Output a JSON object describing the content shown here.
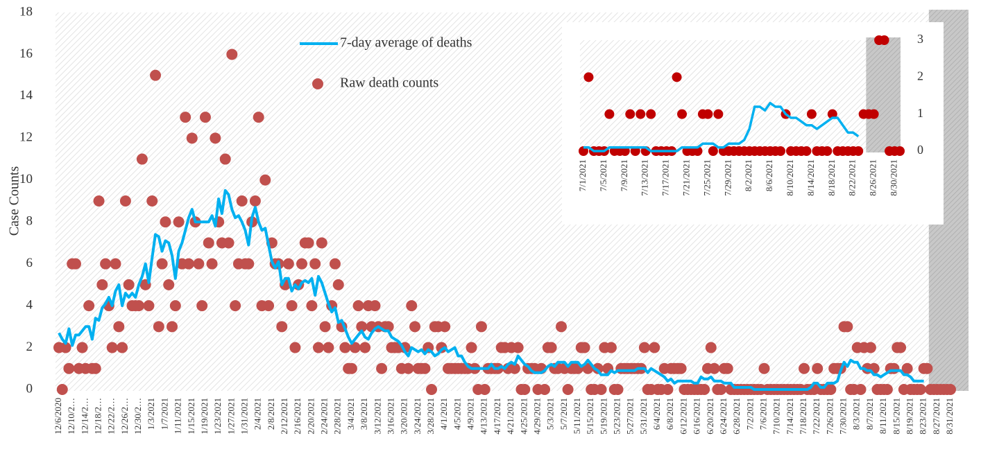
{
  "chart_data": [
    {
      "type": "line",
      "y_label": "Case Counts",
      "categories": [
        "12/6/2020",
        null,
        null,
        null,
        "12/10/2…",
        null,
        null,
        null,
        "12/14/2…",
        null,
        null,
        null,
        "12/18/2…",
        null,
        null,
        null,
        "12/22/2…",
        null,
        null,
        null,
        "12/26/2…",
        null,
        null,
        null,
        "12/30/2…",
        null,
        null,
        null,
        "1/3/2021",
        null,
        null,
        null,
        "1/7/2021",
        null,
        null,
        null,
        "1/11/2021",
        null,
        null,
        null,
        "1/15/2021",
        null,
        null,
        null,
        "1/19/2021",
        null,
        null,
        null,
        "1/23/2021",
        null,
        null,
        null,
        "1/27/2021",
        null,
        null,
        null,
        "1/31/2021",
        null,
        null,
        null,
        "2/4/2021",
        null,
        null,
        null,
        "2/8/2021",
        null,
        null,
        null,
        "2/12/2021",
        null,
        null,
        null,
        "2/16/2021",
        null,
        null,
        null,
        "2/20/2021",
        null,
        null,
        null,
        "2/24/2021",
        null,
        null,
        null,
        "2/28/2021",
        null,
        null,
        null,
        "3/4/2021",
        null,
        null,
        null,
        "3/8/2021",
        null,
        null,
        null,
        "3/12/2021",
        null,
        null,
        null,
        "3/16/2021",
        null,
        null,
        null,
        "3/20/2021",
        null,
        null,
        null,
        "3/24/2021",
        null,
        null,
        null,
        "3/28/2021",
        null,
        null,
        null,
        "4/1/2021",
        null,
        null,
        null,
        "4/5/2021",
        null,
        null,
        null,
        "4/9/2021",
        null,
        null,
        null,
        "4/13/2021",
        null,
        null,
        null,
        "4/17/2021",
        null,
        null,
        null,
        "4/21/2021",
        null,
        null,
        null,
        "4/25/2021",
        null,
        null,
        null,
        "4/29/2021",
        null,
        null,
        null,
        "5/3/2021",
        null,
        null,
        null,
        "5/7/2021",
        null,
        null,
        null,
        "5/11/2021",
        null,
        null,
        null,
        "5/15/2021",
        null,
        null,
        null,
        "5/19/2021",
        null,
        null,
        null,
        "5/23/2021",
        null,
        null,
        null,
        "5/27/2021",
        null,
        null,
        null,
        "5/31/2021",
        null,
        null,
        null,
        "6/4/2021",
        null,
        null,
        null,
        "6/8/2021",
        null,
        null,
        null,
        "6/12/2021",
        null,
        null,
        null,
        "6/16/2021",
        null,
        null,
        null,
        "6/20/2021",
        null,
        null,
        null,
        "6/24/2021",
        null,
        null,
        null,
        "6/28/2021",
        null,
        null,
        null,
        "7/2/2021",
        null,
        null,
        null,
        "7/6/2021",
        null,
        null,
        null,
        "7/10/2021",
        null,
        null,
        null,
        "7/14/2021",
        null,
        null,
        null,
        "7/18/2021",
        null,
        null,
        null,
        "7/22/2021",
        null,
        null,
        null,
        "7/26/2021",
        null,
        null,
        null,
        "7/30/2021",
        null,
        null,
        null,
        "8/3/2021",
        null,
        null,
        null,
        "8/7/2021",
        null,
        null,
        null,
        "8/11/2021",
        null,
        null,
        null,
        "8/15/2021",
        null,
        null,
        null,
        "8/19/2021",
        null,
        null,
        null,
        "8/23/2021",
        null,
        null,
        null,
        "8/27/2021",
        null,
        null,
        null,
        "8/31/2021"
      ],
      "series": [
        {
          "name": "7-day average of deaths",
          "color": "#00b0f0",
          "values": [
            2.7,
            2.4,
            2.2,
            2.9,
            2.1,
            2.6,
            2.6,
            2.8,
            3.0,
            3.0,
            2.4,
            3.4,
            3.3,
            3.9,
            4.1,
            4.4,
            4.0,
            4.7,
            5.0,
            4.0,
            4.6,
            4.4,
            4.6,
            4.4,
            5.0,
            5.4,
            6.0,
            5.1,
            6.3,
            7.4,
            7.3,
            6.6,
            7.1,
            7.0,
            6.4,
            5.3,
            6.6,
            7.0,
            7.6,
            8.2,
            8.6,
            8.0,
            8.0,
            8.0,
            8.0,
            8.0,
            8.3,
            7.8,
            9.1,
            8.4,
            9.5,
            9.3,
            8.6,
            8.2,
            8.3,
            8.0,
            7.6,
            6.9,
            8.2,
            8.7,
            8.0,
            7.6,
            7.7,
            6.9,
            6.1,
            5.8,
            6.1,
            5.0,
            5.3,
            5.3,
            4.7,
            5.0,
            4.8,
            5.1,
            5.2,
            5.1,
            5.3,
            4.5,
            5.4,
            5.1,
            4.6,
            4.1,
            3.7,
            3.9,
            3.2,
            3.3,
            2.9,
            2.5,
            2.2,
            2.4,
            2.6,
            2.8,
            2.5,
            2.4,
            2.7,
            2.9,
            3.0,
            2.9,
            2.8,
            2.8,
            2.5,
            2.4,
            2.3,
            2.1,
            1.8,
            1.6,
            2.0,
            1.9,
            1.8,
            1.9,
            1.7,
            1.9,
            1.8,
            1.6,
            1.7,
            1.9,
            2.0,
            1.8,
            1.9,
            2.0,
            1.6,
            1.6,
            1.3,
            1.1,
            1.0,
            1.0,
            1.0,
            1.0,
            1.0,
            1.0,
            1.2,
            1.0,
            1.0,
            1.1,
            1.0,
            1.2,
            1.3,
            1.2,
            1.6,
            1.4,
            1.2,
            1.1,
            0.9,
            0.8,
            0.8,
            0.8,
            0.9,
            1.1,
            1.2,
            1.1,
            1.3,
            1.3,
            1.3,
            1.1,
            1.3,
            1.3,
            1.3,
            1.1,
            1.2,
            1.4,
            1.2,
            1.0,
            0.9,
            0.7,
            0.7,
            0.7,
            0.9,
            0.8,
            0.9,
            0.9,
            0.9,
            0.9,
            0.9,
            0.9,
            1.0,
            1.0,
            1.0,
            0.8,
            1.0,
            0.9,
            0.8,
            0.7,
            0.6,
            0.4,
            0.5,
            0.3,
            0.4,
            0.4,
            0.4,
            0.4,
            0.4,
            0.3,
            0.3,
            0.6,
            0.5,
            0.5,
            0.6,
            0.4,
            0.4,
            0.4,
            0.3,
            0.3,
            0.3,
            0.1,
            0.1,
            0.1,
            0.1,
            0.1,
            0.1,
            0,
            0,
            0,
            0,
            0,
            0,
            0,
            0,
            0,
            0,
            0,
            0,
            0,
            0,
            0,
            0,
            0,
            0.1,
            0.3,
            0.3,
            0.1,
            0.1,
            0.3,
            0.3,
            0.3,
            0.4,
            0.9,
            1.3,
            1.1,
            1.4,
            1.3,
            1.3,
            1.0,
            1.0,
            0.9,
            0.9,
            0.7,
            0.7,
            0.6,
            0.7,
            0.8,
            0.9,
            0.9,
            0.9,
            0.9,
            0.7,
            0.7,
            0.6,
            0.4,
            0.4,
            0.4,
            0.4,
            null,
            null,
            null,
            null,
            null,
            null,
            null,
            null
          ]
        },
        {
          "name": "Raw death counts",
          "color": "#c0504d",
          "values": [
            2,
            0,
            2,
            1,
            6,
            6,
            1,
            2,
            1,
            4,
            1,
            1,
            9,
            5,
            6,
            4,
            2,
            6,
            3,
            2,
            9,
            5,
            4,
            4,
            4,
            11,
            5,
            4,
            9,
            15,
            3,
            6,
            8,
            5,
            3,
            4,
            8,
            6,
            13,
            6,
            12,
            8,
            6,
            4,
            13,
            7,
            6,
            12,
            8,
            7,
            11,
            7,
            16,
            4,
            6,
            9,
            6,
            6,
            8,
            9,
            13,
            4,
            10,
            4,
            7,
            6,
            6,
            3,
            5,
            6,
            4,
            2,
            5,
            6,
            7,
            7,
            4,
            6,
            2,
            7,
            3,
            2,
            4,
            6,
            5,
            3,
            2,
            1,
            1,
            2,
            4,
            3,
            2,
            4,
            3,
            4,
            3,
            1,
            3,
            3,
            2,
            2,
            2,
            1,
            2,
            1,
            4,
            3,
            1,
            1,
            1,
            2,
            0,
            3,
            3,
            2,
            3,
            1,
            1,
            1,
            1,
            1,
            1,
            1,
            2,
            1,
            0,
            3,
            0,
            1,
            1,
            1,
            1,
            2,
            2,
            1,
            2,
            1,
            2,
            0,
            0,
            1,
            1,
            1,
            0,
            1,
            0,
            2,
            2,
            1,
            1,
            3,
            1,
            0,
            1,
            1,
            1,
            2,
            2,
            1,
            0,
            0,
            1,
            0,
            2,
            1,
            2,
            0,
            0,
            1,
            1,
            1,
            1,
            1,
            1,
            1,
            2,
            0,
            0,
            2,
            0,
            0,
            1,
            0,
            1,
            1,
            1,
            1,
            0,
            0,
            0,
            0,
            0,
            0,
            0,
            1,
            2,
            1,
            0,
            0,
            1,
            1,
            0,
            0,
            0,
            0,
            0,
            0,
            0,
            0,
            0,
            0,
            1,
            0,
            0,
            0,
            0,
            0,
            0,
            0,
            0,
            0,
            0,
            0,
            1,
            0,
            0,
            0,
            1,
            0,
            0,
            0,
            0,
            1,
            1,
            1,
            3,
            3,
            0,
            0,
            2,
            0,
            2,
            1,
            2,
            1,
            0,
            0,
            0,
            0,
            1,
            1,
            2,
            2,
            0,
            1,
            0,
            0,
            0,
            0,
            1,
            1,
            0,
            0,
            0,
            0,
            0,
            0,
            0
          ]
        }
      ],
      "ylim": [
        0,
        18
      ],
      "yticks": [
        0,
        2,
        4,
        6,
        8,
        10,
        12,
        14,
        16,
        18
      ],
      "legend": "top"
    },
    {
      "type": "line",
      "categories": [
        "7/1/2021",
        null,
        null,
        null,
        "7/5/2021",
        null,
        null,
        null,
        "7/9/2021",
        null,
        null,
        null,
        "7/13/2021",
        null,
        null,
        null,
        "7/17/2021",
        null,
        null,
        null,
        "7/21/2021",
        null,
        null,
        null,
        "7/25/2021",
        null,
        null,
        null,
        "7/29/2021",
        null,
        null,
        null,
        "8/2/2021",
        null,
        null,
        null,
        "8/6/2021",
        null,
        null,
        null,
        "8/10/2021",
        null,
        null,
        null,
        "8/14/2021",
        null,
        null,
        null,
        "8/18/2021",
        null,
        null,
        null,
        "8/22/2021",
        null,
        null,
        null,
        "8/26/2021",
        null,
        null,
        null,
        "8/30/2021",
        null
      ],
      "series": [
        {
          "name": "7-day average of deaths",
          "color": "#00b0f0",
          "values": [
            0.1,
            0.1,
            0,
            0,
            0,
            0.1,
            0.1,
            0.1,
            0.1,
            0.1,
            0.1,
            0.1,
            0.1,
            0,
            0,
            0,
            0,
            0,
            0,
            0.1,
            0.1,
            0.1,
            0.1,
            0.2,
            0.2,
            0.2,
            0.1,
            0.1,
            0.2,
            0.2,
            0.2,
            0.3,
            0.6,
            1.2,
            1.2,
            1.1,
            1.3,
            1.2,
            1.2,
            1.0,
            0.9,
            0.9,
            0.8,
            0.7,
            0.7,
            0.6,
            0.7,
            0.8,
            0.9,
            0.9,
            0.7,
            0.5,
            0.5,
            0.4,
            null,
            null,
            null,
            null,
            null,
            null,
            null,
            null
          ]
        },
        {
          "name": "Raw death counts",
          "color": "#c00000",
          "values": [
            0,
            2,
            0,
            0,
            0,
            1,
            0,
            0,
            0,
            1,
            0,
            1,
            0,
            1,
            0,
            0,
            0,
            0,
            2,
            1,
            0,
            0,
            0,
            1,
            1,
            0,
            1,
            0,
            0,
            0,
            0,
            0,
            0,
            0,
            0,
            0,
            0,
            0,
            0,
            1,
            0,
            0,
            0,
            0,
            1,
            0,
            0,
            0,
            1,
            0,
            0,
            0,
            0,
            0,
            1,
            1,
            1,
            3,
            3,
            0,
            0,
            0
          ]
        }
      ],
      "ylim": [
        0,
        3
      ],
      "yticks": [
        0,
        1,
        2,
        3
      ]
    }
  ]
}
